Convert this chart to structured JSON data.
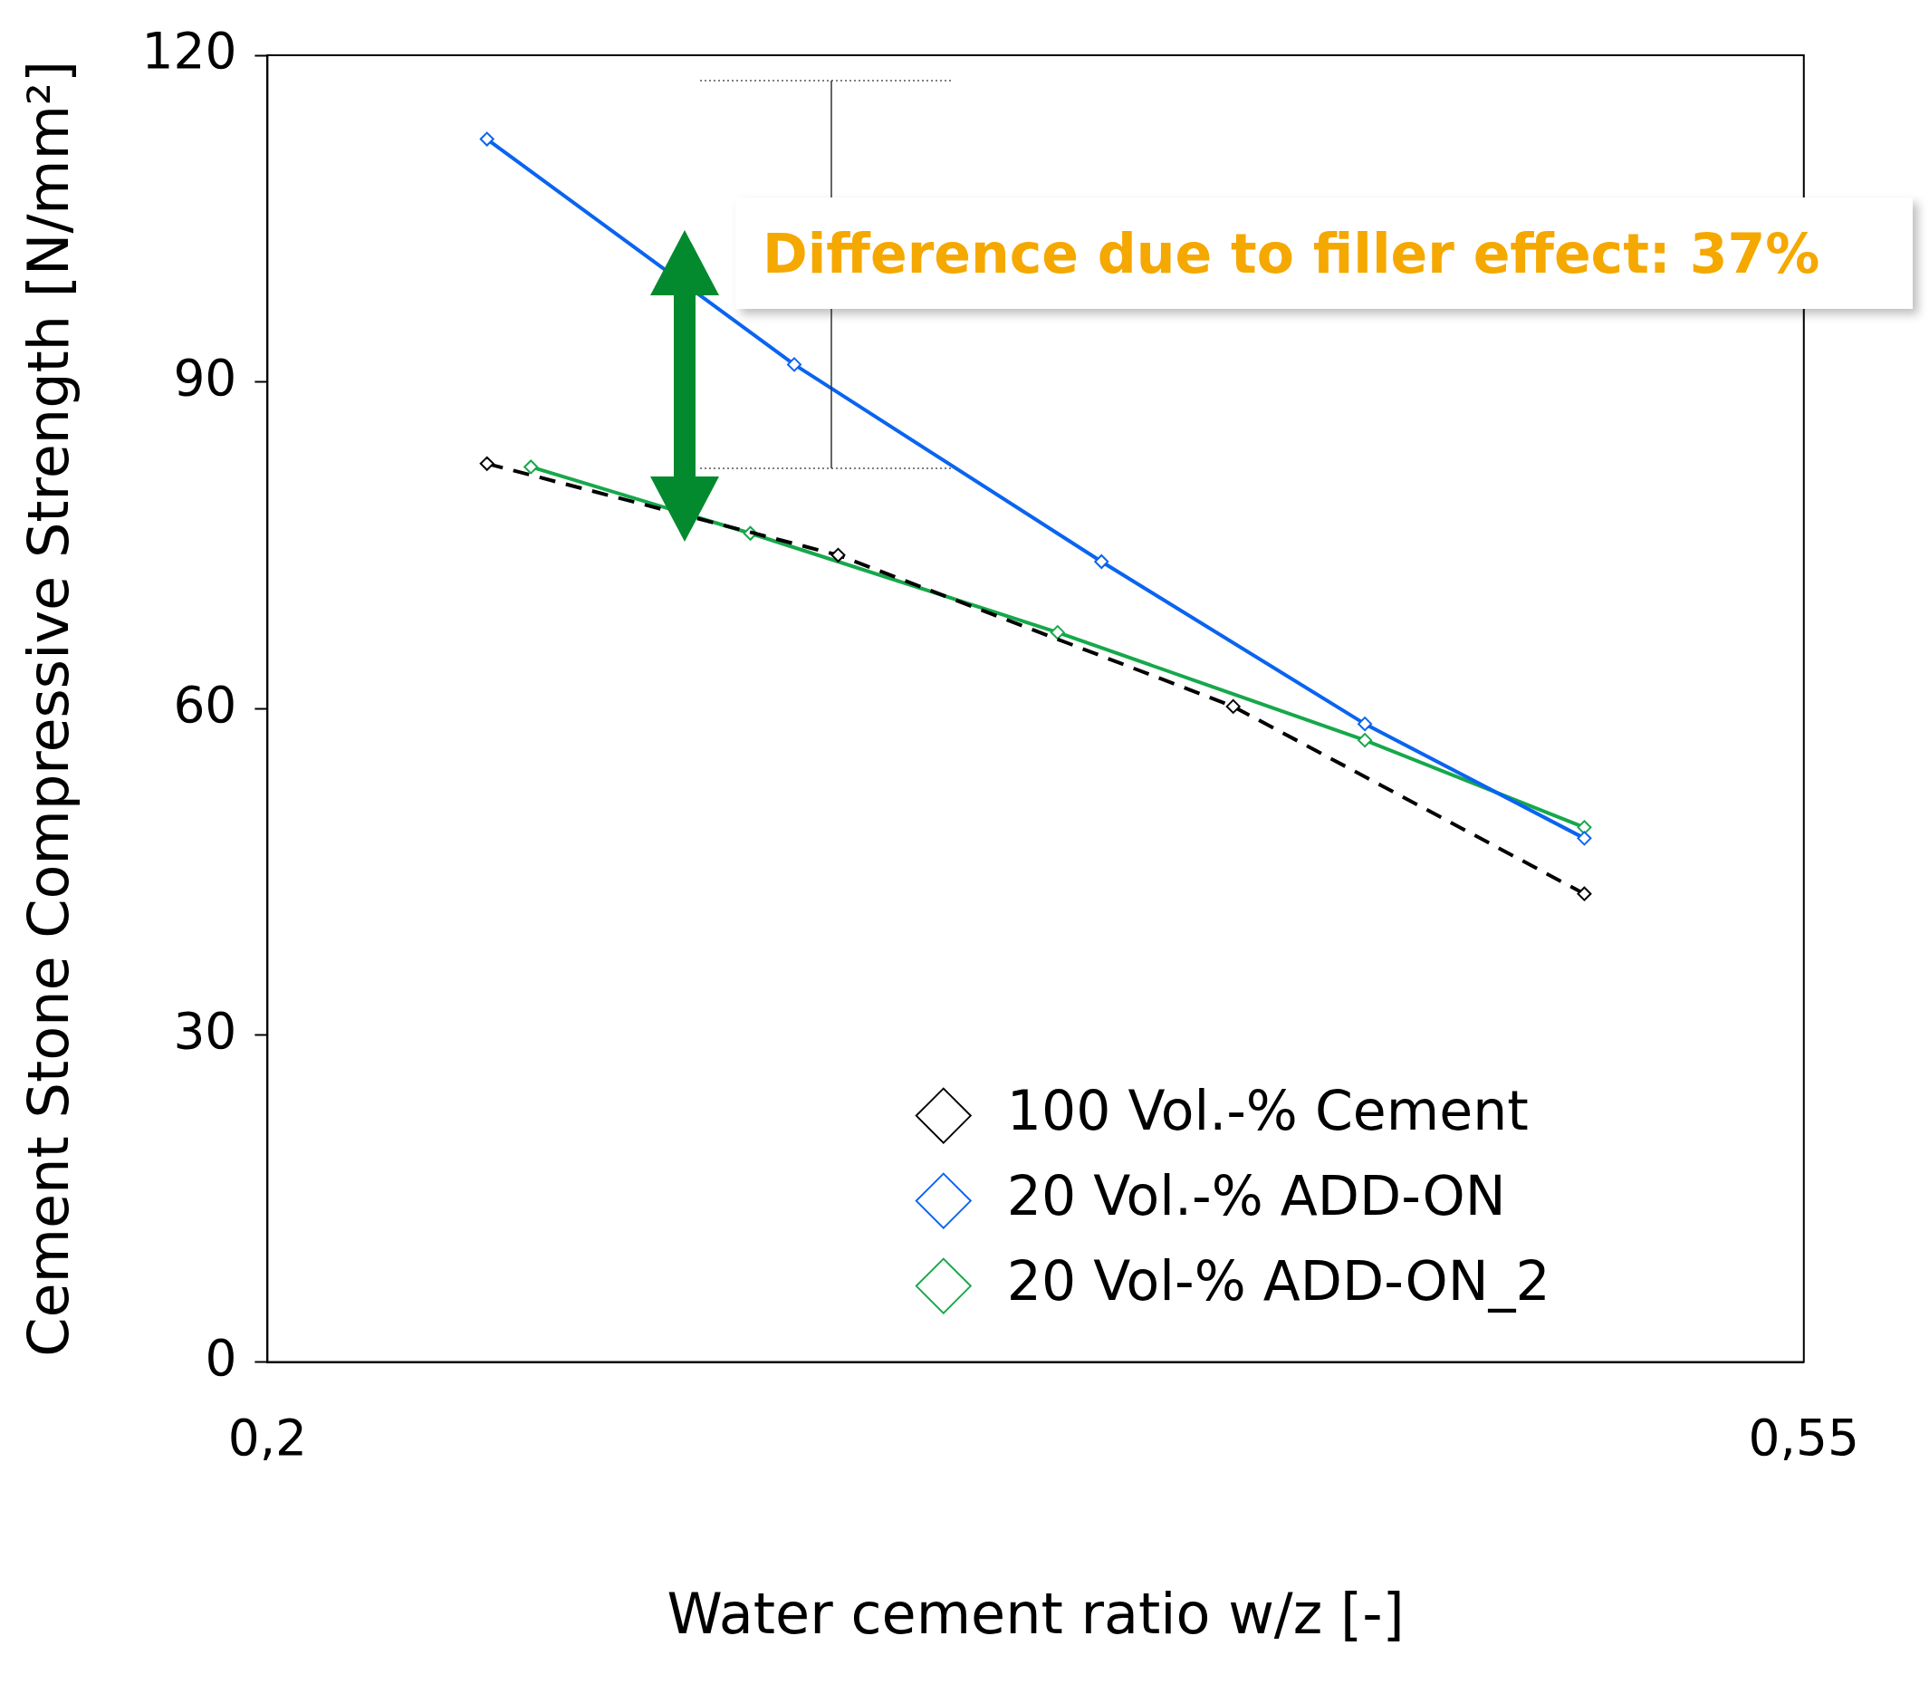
{
  "chart_data": {
    "type": "line",
    "xlabel": "Water cement ratio w/z [-]",
    "ylabel": "Cement Stone Compressive Strength [N/mm²]",
    "xlim": [
      0.2,
      0.55
    ],
    "xticks": [
      {
        "value": 0.2,
        "label": "0,2"
      },
      {
        "value": 0.55,
        "label": "0,55"
      }
    ],
    "ylim": [
      0,
      120
    ],
    "yticks": [
      0,
      30,
      60,
      90,
      120
    ],
    "grid": false,
    "legend": "bottom right",
    "marker": "diamond",
    "annotations": [
      "Difference due to filler effect: 37%"
    ],
    "series": [
      {
        "name": "100 Vol.-% Cement",
        "color": "#000000",
        "line_style": "dashed",
        "x": [
          0.25,
          0.33,
          0.42,
          0.5
        ],
        "values": [
          82.5,
          74.1,
          60.2,
          43.0
        ]
      },
      {
        "name": "20 Vol.-% ADD-ON",
        "color": "#0a64f0",
        "line_style": "solid",
        "x": [
          0.25,
          0.32,
          0.39,
          0.45,
          0.5
        ],
        "values": [
          112.3,
          91.6,
          73.5,
          58.6,
          48.1
        ]
      },
      {
        "name": "20 Vol-% ADD-ON_2",
        "color": "#16a84a",
        "line_style": "solid",
        "x": [
          0.26,
          0.31,
          0.38,
          0.45,
          0.5
        ],
        "values": [
          82.2,
          76.1,
          67.0,
          57.1,
          49.1
        ]
      }
    ]
  }
}
